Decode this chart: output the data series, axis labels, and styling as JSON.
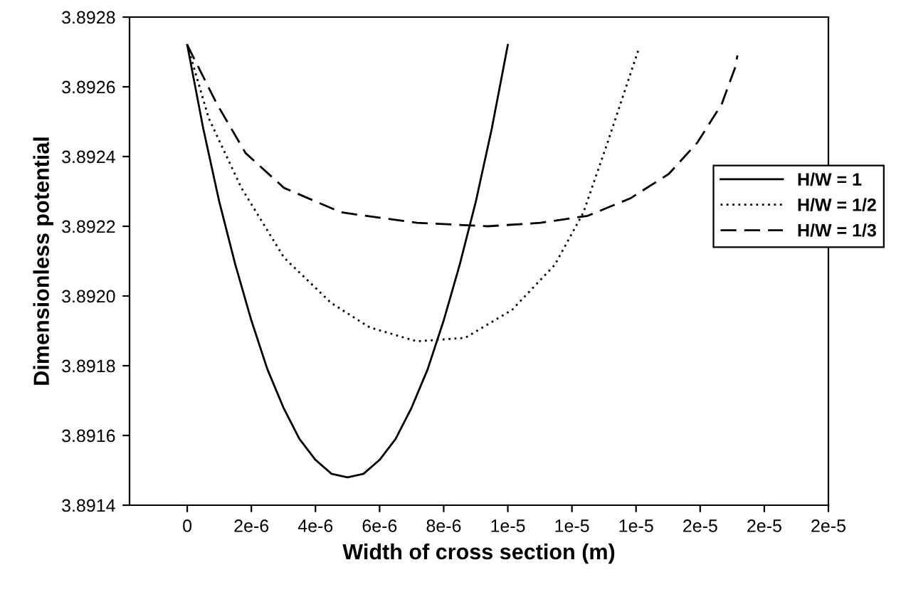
{
  "chart_data": {
    "type": "line",
    "xlabel": "Width of cross section (m)",
    "ylabel": "Dimensionless potential",
    "xlim": [
      -1.8e-06,
      2e-05
    ],
    "ylim": [
      3.8914,
      3.8928
    ],
    "xticks": [
      0,
      {
        "value": 2e-06,
        "label": "2e-6"
      },
      {
        "value": 4e-06,
        "label": "4e-6"
      },
      {
        "value": 6e-06,
        "label": "6e-6"
      },
      {
        "value": 8e-06,
        "label": "8e-6"
      },
      {
        "value": 1e-05,
        "label": "1e-5"
      },
      {
        "value": 1.2e-05,
        "label": "1e-5"
      },
      {
        "value": 1.4e-05,
        "label": "1e-5"
      },
      {
        "value": 1.6e-05,
        "label": "2e-5"
      },
      {
        "value": 1.8e-05,
        "label": "2e-5"
      },
      {
        "value": 2e-05,
        "label": "2e-5"
      }
    ],
    "yticks": [
      3.8914,
      3.8916,
      3.8918,
      {
        "value": 3.892,
        "label": "3.8920"
      },
      3.8922,
      3.8924,
      3.8926,
      3.8928
    ],
    "grid": false,
    "legend": "right",
    "marker": "none",
    "series": [
      {
        "name": "H/W = 1",
        "color": "#000000",
        "line_style": "solid",
        "x": [
          0,
          5e-07,
          1e-06,
          1.5e-06,
          2e-06,
          2.5e-06,
          3e-06,
          3.5e-06,
          4e-06,
          4.5e-06,
          5e-06,
          5.5e-06,
          6e-06,
          6.5e-06,
          7e-06,
          7.5e-06,
          8e-06,
          8.5e-06,
          9e-06,
          9.5e-06,
          1e-05
        ],
        "values": [
          3.89272,
          3.89248,
          3.89227,
          3.89209,
          3.89193,
          3.89179,
          3.89168,
          3.89159,
          3.89153,
          3.89149,
          3.89148,
          3.89149,
          3.89153,
          3.89159,
          3.89168,
          3.89179,
          3.89193,
          3.89209,
          3.89227,
          3.89248,
          3.89272
        ]
      },
      {
        "name": "H/W = 1/2",
        "color": "#000000",
        "line_style": "dotted",
        "x": [
          0,
          6.7e-07,
          1.69e-06,
          3.02e-06,
          4.49e-06,
          5.69e-06,
          7.16e-06,
          8.67e-06,
          1.013e-05,
          1.147e-05,
          1.236e-05,
          1.311e-05,
          1.369e-05,
          1.409e-05
        ],
        "values": [
          3.89272,
          3.89251,
          3.89231,
          3.89211,
          3.89198,
          3.89191,
          3.89187,
          3.89188,
          3.89196,
          3.89209,
          3.89224,
          3.89244,
          3.8926,
          3.89271
        ]
      },
      {
        "name": "H/W = 1/3",
        "color": "#000000",
        "line_style": "dashed",
        "x": [
          0,
          9.3e-07,
          1.82e-06,
          3.02e-06,
          4.8e-06,
          7.16e-06,
          9.38e-06,
          1.102e-05,
          1.249e-05,
          1.382e-05,
          1.502e-05,
          1.591e-05,
          1.667e-05,
          1.711e-05,
          1.716e-05
        ],
        "values": [
          3.89272,
          3.89255,
          3.89241,
          3.89231,
          3.89224,
          3.89221,
          3.8922,
          3.89221,
          3.89223,
          3.89228,
          3.89235,
          3.89244,
          3.89255,
          3.89266,
          3.89269
        ]
      }
    ]
  }
}
